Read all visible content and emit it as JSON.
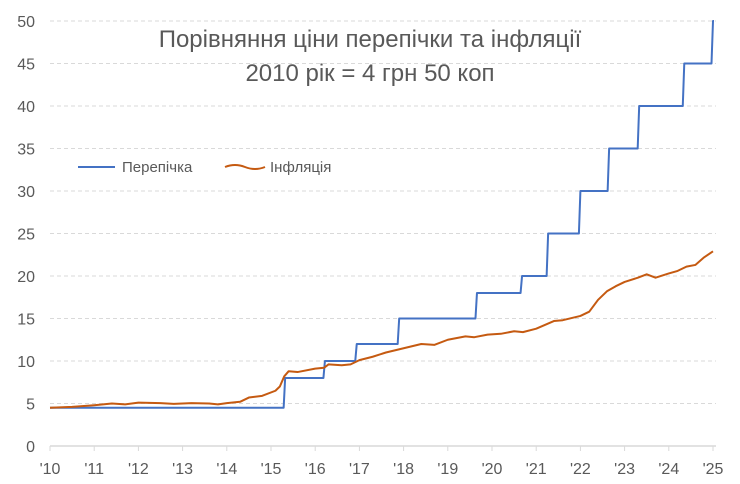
{
  "chart_data": {
    "type": "line",
    "title": [
      "Порівняння ціни перепічки та інфляції",
      "2010 рік = 4 грн 50 коп"
    ],
    "xlabel": "",
    "ylabel": "",
    "xlim": [
      2010,
      2025
    ],
    "ylim": [
      0,
      50
    ],
    "x_ticks": [
      "'10",
      "'11",
      "'12",
      "'13",
      "'14",
      "'15",
      "'16",
      "'17",
      "'18",
      "'19",
      "'20",
      "'21",
      "'22",
      "'23",
      "'24",
      "'25"
    ],
    "y_ticks": [
      0,
      5,
      10,
      15,
      20,
      25,
      30,
      35,
      40,
      45,
      50
    ],
    "grid": "horizontal dashed",
    "legend": "top-left",
    "series": [
      {
        "name": "Перепічка",
        "color": "#4472C4",
        "step": true,
        "points": [
          [
            2010,
            4.5
          ],
          [
            2015.32,
            8
          ],
          [
            2016.22,
            10
          ],
          [
            2016.94,
            12
          ],
          [
            2017.9,
            15
          ],
          [
            2019.66,
            18
          ],
          [
            2020.68,
            20
          ],
          [
            2021.27,
            25
          ],
          [
            2022.0,
            30
          ],
          [
            2022.65,
            35
          ],
          [
            2023.33,
            40
          ],
          [
            2024.35,
            45
          ],
          [
            2025.0,
            50
          ]
        ]
      },
      {
        "name": "Інфляція",
        "color": "#C55A11",
        "step": false,
        "points": [
          [
            2010,
            4.5
          ],
          [
            2010.5,
            4.6
          ],
          [
            2011,
            4.8
          ],
          [
            2011.4,
            5.0
          ],
          [
            2011.7,
            4.9
          ],
          [
            2012,
            5.1
          ],
          [
            2012.5,
            5.05
          ],
          [
            2012.8,
            4.95
          ],
          [
            2013.2,
            5.05
          ],
          [
            2013.6,
            5.0
          ],
          [
            2013.8,
            4.9
          ],
          [
            2014,
            5.05
          ],
          [
            2014.3,
            5.2
          ],
          [
            2014.5,
            5.7
          ],
          [
            2014.8,
            5.9
          ],
          [
            2015.1,
            6.5
          ],
          [
            2015.2,
            7.0
          ],
          [
            2015.3,
            8.2
          ],
          [
            2015.4,
            8.8
          ],
          [
            2015.6,
            8.7
          ],
          [
            2016,
            9.1
          ],
          [
            2016.2,
            9.2
          ],
          [
            2016.3,
            9.6
          ],
          [
            2016.6,
            9.5
          ],
          [
            2016.8,
            9.6
          ],
          [
            2017,
            10.1
          ],
          [
            2017.3,
            10.5
          ],
          [
            2017.6,
            11.0
          ],
          [
            2018,
            11.5
          ],
          [
            2018.4,
            12.0
          ],
          [
            2018.7,
            11.9
          ],
          [
            2019,
            12.5
          ],
          [
            2019.4,
            12.9
          ],
          [
            2019.6,
            12.8
          ],
          [
            2019.9,
            13.1
          ],
          [
            2020.2,
            13.2
          ],
          [
            2020.5,
            13.5
          ],
          [
            2020.7,
            13.4
          ],
          [
            2021,
            13.8
          ],
          [
            2021.4,
            14.7
          ],
          [
            2021.6,
            14.8
          ],
          [
            2022,
            15.3
          ],
          [
            2022.2,
            15.8
          ],
          [
            2022.4,
            17.2
          ],
          [
            2022.6,
            18.2
          ],
          [
            2022.8,
            18.8
          ],
          [
            2023,
            19.3
          ],
          [
            2023.3,
            19.8
          ],
          [
            2023.5,
            20.2
          ],
          [
            2023.7,
            19.8
          ],
          [
            2024,
            20.3
          ],
          [
            2024.2,
            20.6
          ],
          [
            2024.4,
            21.1
          ],
          [
            2024.6,
            21.3
          ],
          [
            2024.8,
            22.2
          ],
          [
            2025,
            22.9
          ]
        ]
      }
    ]
  }
}
